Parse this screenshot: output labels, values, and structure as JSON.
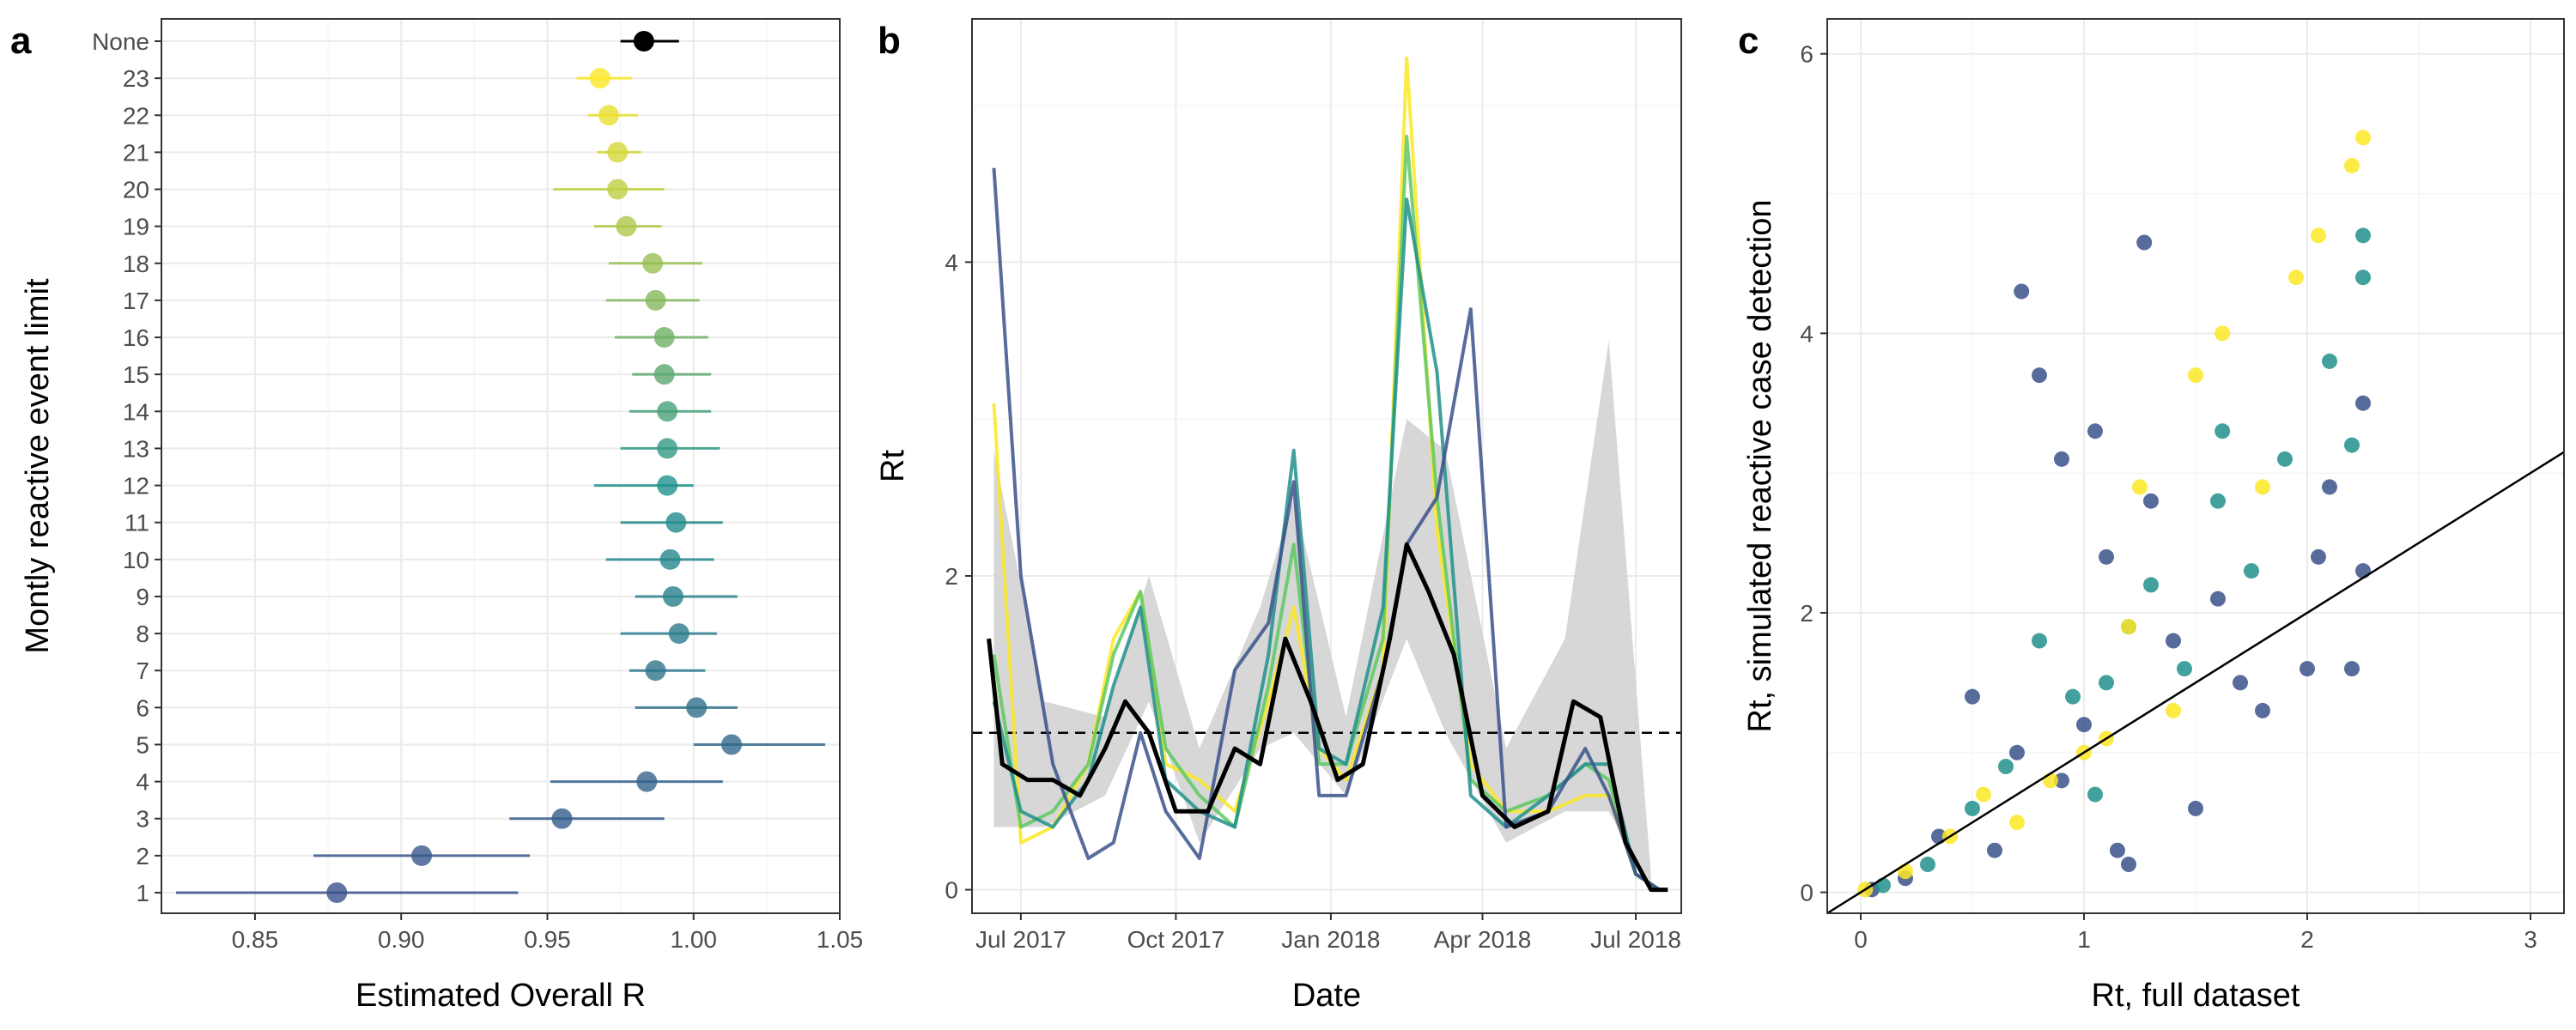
{
  "colors": {
    "none_point": "#000000",
    "viridis_low": "#3b528b",
    "viridis_mid": "#21918c",
    "viridis_high": "#fde725",
    "mean_line": "#000000",
    "ci_band": "#d3d3d3",
    "reference_line": "#000000"
  },
  "chart_data": [
    {
      "panel": "a",
      "type": "scatter",
      "xlabel": "Estimated Overall R",
      "ylabel": "Montly reactive event limit",
      "xlim": [
        0.818,
        1.05
      ],
      "x_ticks": [
        "0.85",
        "0.90",
        "0.95",
        "1.00",
        "1.05"
      ],
      "grid": true,
      "categories": [
        "None",
        "23",
        "22",
        "21",
        "20",
        "19",
        "18",
        "17",
        "16",
        "15",
        "14",
        "13",
        "12",
        "11",
        "10",
        "9",
        "8",
        "7",
        "6",
        "5",
        "4",
        "3",
        "2",
        "1"
      ],
      "points": [
        {
          "label": "None",
          "estimate": 0.983,
          "lower": 0.975,
          "upper": 0.995
        },
        {
          "label": "23",
          "estimate": 0.968,
          "lower": 0.96,
          "upper": 0.979
        },
        {
          "label": "22",
          "estimate": 0.971,
          "lower": 0.964,
          "upper": 0.981
        },
        {
          "label": "21",
          "estimate": 0.974,
          "lower": 0.967,
          "upper": 0.982
        },
        {
          "label": "20",
          "estimate": 0.974,
          "lower": 0.952,
          "upper": 0.99
        },
        {
          "label": "19",
          "estimate": 0.977,
          "lower": 0.966,
          "upper": 0.989
        },
        {
          "label": "18",
          "estimate": 0.986,
          "lower": 0.971,
          "upper": 1.003
        },
        {
          "label": "17",
          "estimate": 0.987,
          "lower": 0.97,
          "upper": 1.002
        },
        {
          "label": "16",
          "estimate": 0.99,
          "lower": 0.973,
          "upper": 1.005
        },
        {
          "label": "15",
          "estimate": 0.99,
          "lower": 0.979,
          "upper": 1.006
        },
        {
          "label": "14",
          "estimate": 0.991,
          "lower": 0.978,
          "upper": 1.006
        },
        {
          "label": "13",
          "estimate": 0.991,
          "lower": 0.975,
          "upper": 1.009
        },
        {
          "label": "12",
          "estimate": 0.991,
          "lower": 0.966,
          "upper": 1.0
        },
        {
          "label": "11",
          "estimate": 0.994,
          "lower": 0.975,
          "upper": 1.01
        },
        {
          "label": "10",
          "estimate": 0.992,
          "lower": 0.97,
          "upper": 1.007
        },
        {
          "label": "9",
          "estimate": 0.993,
          "lower": 0.98,
          "upper": 1.015
        },
        {
          "label": "8",
          "estimate": 0.995,
          "lower": 0.975,
          "upper": 1.008
        },
        {
          "label": "7",
          "estimate": 0.987,
          "lower": 0.978,
          "upper": 1.004
        },
        {
          "label": "6",
          "estimate": 1.001,
          "lower": 0.98,
          "upper": 1.015
        },
        {
          "label": "5",
          "estimate": 1.013,
          "lower": 1.0,
          "upper": 1.045
        },
        {
          "label": "4",
          "estimate": 0.984,
          "lower": 0.951,
          "upper": 1.01
        },
        {
          "label": "3",
          "estimate": 0.955,
          "lower": 0.937,
          "upper": 0.99
        },
        {
          "label": "2",
          "estimate": 0.907,
          "lower": 0.87,
          "upper": 0.944
        },
        {
          "label": "1",
          "estimate": 0.878,
          "lower": 0.823,
          "upper": 0.94
        }
      ]
    },
    {
      "panel": "b",
      "type": "line",
      "xlabel": "Date",
      "ylabel": "Rt",
      "x_range": [
        "2017-06-02",
        "2018-07-28"
      ],
      "ylim": [
        -0.15,
        5.55
      ],
      "x_ticks": [
        {
          "label": "Jul 2017",
          "date": "2017-07-01"
        },
        {
          "label": "Oct 2017",
          "date": "2017-10-01"
        },
        {
          "label": "Jan 2018",
          "date": "2018-01-01"
        },
        {
          "label": "Apr 2018",
          "date": "2018-04-01"
        },
        {
          "label": "Jul 2018",
          "date": "2018-07-01"
        }
      ],
      "y_ticks": [
        0,
        2,
        4
      ],
      "reference_line": 1,
      "grid": true,
      "band": {
        "x_dates": [
          "2017-06-15",
          "2017-07-15",
          "2017-08-20",
          "2017-09-15",
          "2017-10-15",
          "2017-11-20",
          "2017-12-10",
          "2018-01-10",
          "2018-02-15",
          "2018-03-10",
          "2018-04-15",
          "2018-05-20",
          "2018-06-15",
          "2018-07-10"
        ],
        "lower": [
          0.4,
          0.4,
          0.6,
          1.2,
          0.3,
          0.9,
          1.0,
          0.6,
          1.6,
          1.0,
          0.3,
          0.5,
          0.5,
          0.0
        ],
        "upper": [
          2.8,
          1.2,
          1.1,
          2.0,
          0.9,
          1.8,
          2.5,
          1.1,
          3.0,
          2.8,
          0.9,
          1.6,
          3.5,
          0.1
        ]
      },
      "series": [
        {
          "color": "#fde725",
          "x_dates": [
            "2017-06-15",
            "2017-07-01",
            "2017-07-20",
            "2017-08-10",
            "2017-08-25",
            "2017-09-10",
            "2017-09-25",
            "2017-10-15",
            "2017-11-05",
            "2017-11-25",
            "2017-12-10",
            "2017-12-25",
            "2018-01-10",
            "2018-02-01",
            "2018-02-15",
            "2018-03-05",
            "2018-03-25",
            "2018-04-15",
            "2018-05-10",
            "2018-06-01",
            "2018-06-15",
            "2018-07-01",
            "2018-07-15"
          ],
          "values": [
            3.1,
            0.3,
            0.4,
            0.8,
            1.6,
            1.9,
            0.8,
            0.7,
            0.5,
            1.2,
            1.8,
            0.9,
            0.7,
            1.4,
            5.3,
            2.3,
            0.8,
            0.5,
            0.5,
            0.6,
            0.6,
            0.1,
            0.0
          ]
        },
        {
          "color": "#5ec962",
          "x_dates": [
            "2017-06-15",
            "2017-07-01",
            "2017-07-20",
            "2017-08-10",
            "2017-08-25",
            "2017-09-10",
            "2017-09-25",
            "2017-10-15",
            "2017-11-05",
            "2017-11-25",
            "2017-12-10",
            "2017-12-25",
            "2018-01-10",
            "2018-02-01",
            "2018-02-15",
            "2018-03-05",
            "2018-03-25",
            "2018-04-15",
            "2018-05-10",
            "2018-06-01",
            "2018-06-15",
            "2018-07-01",
            "2018-07-15"
          ],
          "values": [
            1.5,
            0.4,
            0.5,
            0.8,
            1.5,
            1.9,
            0.9,
            0.6,
            0.4,
            1.3,
            2.2,
            0.8,
            0.8,
            1.6,
            4.8,
            2.5,
            0.7,
            0.5,
            0.6,
            0.8,
            0.7,
            0.1,
            0.0
          ]
        },
        {
          "color": "#21918c",
          "x_dates": [
            "2017-06-15",
            "2017-07-01",
            "2017-07-20",
            "2017-08-10",
            "2017-08-25",
            "2017-09-10",
            "2017-09-25",
            "2017-10-15",
            "2017-11-05",
            "2017-11-25",
            "2017-12-10",
            "2017-12-25",
            "2018-01-10",
            "2018-02-01",
            "2018-02-15",
            "2018-03-05",
            "2018-03-25",
            "2018-04-15",
            "2018-05-10",
            "2018-06-01",
            "2018-06-15",
            "2018-07-01",
            "2018-07-15"
          ],
          "values": [
            1.2,
            0.5,
            0.4,
            0.7,
            1.3,
            1.8,
            0.7,
            0.5,
            0.4,
            1.5,
            2.8,
            0.9,
            0.8,
            1.8,
            4.4,
            3.3,
            0.6,
            0.4,
            0.6,
            0.8,
            0.8,
            0.1,
            0.0
          ]
        },
        {
          "color": "#3b528b",
          "x_dates": [
            "2017-06-15",
            "2017-07-01",
            "2017-07-20",
            "2017-08-10",
            "2017-08-25",
            "2017-09-10",
            "2017-09-25",
            "2017-10-15",
            "2017-11-05",
            "2017-11-25",
            "2017-12-10",
            "2017-12-25",
            "2018-01-10",
            "2018-02-01",
            "2018-02-15",
            "2018-03-05",
            "2018-03-25",
            "2018-04-15",
            "2018-05-10",
            "2018-06-01",
            "2018-06-15",
            "2018-07-01",
            "2018-07-15"
          ],
          "values": [
            4.6,
            2.0,
            0.8,
            0.2,
            0.3,
            1.0,
            0.5,
            0.2,
            1.4,
            1.7,
            2.6,
            0.6,
            0.6,
            1.4,
            2.2,
            2.5,
            3.7,
            0.4,
            0.5,
            0.9,
            0.6,
            0.1,
            0.0
          ]
        },
        {
          "color": "#000000",
          "x_dates": [
            "2017-06-12",
            "2017-06-20",
            "2017-07-05",
            "2017-07-20",
            "2017-08-05",
            "2017-08-20",
            "2017-09-01",
            "2017-09-15",
            "2017-10-01",
            "2017-10-20",
            "2017-11-05",
            "2017-11-20",
            "2017-12-05",
            "2017-12-20",
            "2018-01-05",
            "2018-01-20",
            "2018-02-05",
            "2018-02-15",
            "2018-02-28",
            "2018-03-15",
            "2018-04-01",
            "2018-04-20",
            "2018-05-10",
            "2018-05-25",
            "2018-06-10",
            "2018-06-25",
            "2018-07-10",
            "2018-07-20"
          ],
          "values": [
            1.6,
            0.8,
            0.7,
            0.7,
            0.6,
            0.9,
            1.2,
            1.0,
            0.5,
            0.5,
            0.9,
            0.8,
            1.6,
            1.2,
            0.7,
            0.8,
            1.6,
            2.2,
            1.9,
            1.5,
            0.6,
            0.4,
            0.5,
            1.2,
            1.1,
            0.3,
            0.0,
            0.0
          ]
        }
      ]
    },
    {
      "panel": "c",
      "type": "scatter",
      "xlabel": "Rt, full dataset",
      "ylabel": "Rt, simulated reactive case detection",
      "xlim": [
        -0.15,
        3.15
      ],
      "ylim": [
        -0.15,
        6.25
      ],
      "x_ticks": [
        0,
        1,
        2,
        3
      ],
      "y_ticks": [
        0,
        2,
        4,
        6
      ],
      "reference_line": {
        "slope": 1,
        "intercept": 0
      },
      "grid": true,
      "series": [
        {
          "color": "#3b528b",
          "x": [
            0.05,
            0.2,
            0.35,
            0.5,
            0.6,
            0.7,
            0.72,
            0.8,
            0.9,
            0.9,
            1.0,
            1.05,
            1.1,
            1.15,
            1.2,
            1.27,
            1.3,
            1.4,
            1.5,
            1.6,
            1.7,
            1.8,
            2.0,
            2.05,
            2.1,
            2.2,
            2.25,
            2.25
          ],
          "y": [
            0.02,
            0.1,
            0.4,
            1.4,
            0.3,
            1.0,
            4.3,
            3.7,
            3.1,
            0.8,
            1.2,
            3.3,
            2.4,
            0.3,
            0.2,
            4.65,
            2.8,
            1.8,
            0.6,
            2.1,
            1.5,
            1.3,
            1.6,
            2.4,
            2.9,
            1.6,
            2.3,
            3.5
          ]
        },
        {
          "color": "#21918c",
          "x": [
            0.1,
            0.3,
            0.5,
            0.65,
            0.8,
            0.95,
            1.05,
            1.1,
            1.2,
            1.3,
            1.45,
            1.6,
            1.62,
            1.75,
            1.9,
            2.1,
            2.2,
            2.25,
            2.25
          ],
          "y": [
            0.05,
            0.2,
            0.6,
            0.9,
            1.8,
            1.4,
            0.7,
            1.5,
            1.9,
            2.2,
            1.6,
            2.8,
            3.3,
            2.3,
            3.1,
            3.8,
            3.2,
            4.4,
            4.7
          ]
        },
        {
          "color": "#fde725",
          "x": [
            0.02,
            0.2,
            0.4,
            0.55,
            0.7,
            0.85,
            1.0,
            1.1,
            1.2,
            1.25,
            1.4,
            1.5,
            1.62,
            1.8,
            1.95,
            2.05,
            2.2,
            2.25
          ],
          "y": [
            0.02,
            0.15,
            0.4,
            0.7,
            0.5,
            0.8,
            1.0,
            1.1,
            1.9,
            2.9,
            1.3,
            3.7,
            4.0,
            2.9,
            4.4,
            4.7,
            5.2,
            5.4
          ]
        }
      ]
    }
  ]
}
